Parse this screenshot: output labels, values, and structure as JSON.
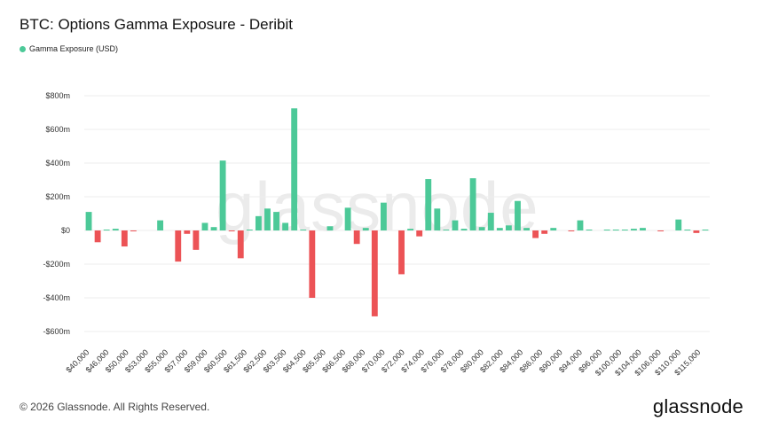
{
  "title": "BTC: Options Gamma Exposure - Deribit",
  "legend": {
    "label": "Gamma Exposure (USD)",
    "color": "#4cc998"
  },
  "watermark": "glassnode",
  "footer": {
    "copyright": "© 2026 Glassnode. All Rights Reserved.",
    "brand": "glassnode"
  },
  "colors": {
    "positive": "#4cc998",
    "negative": "#ec5356",
    "grid": "#eeeeee"
  },
  "chart_data": {
    "type": "bar",
    "ylim": [
      -700,
      850
    ],
    "yticks": [
      -600,
      -400,
      -200,
      0,
      200,
      400,
      600,
      800
    ],
    "ytick_labels": [
      "-$600m",
      "-$400m",
      "-$200m",
      "$0",
      "$200m",
      "$400m",
      "$600m",
      "$800m"
    ],
    "xtick_labels": [
      "$40,000",
      "$46,000",
      "$50,000",
      "$53,000",
      "$55,000",
      "$57,000",
      "$59,000",
      "$60,500",
      "$61,500",
      "$62,500",
      "$63,500",
      "$64,500",
      "$65,500",
      "$66,500",
      "$68,000",
      "$70,000",
      "$72,000",
      "$74,000",
      "$76,000",
      "$78,000",
      "$80,000",
      "$82,000",
      "$84,000",
      "$86,000",
      "$90,000",
      "$94,000",
      "$96,000",
      "$100,000",
      "$104,000",
      "$106,000",
      "$110,000",
      "$115,000"
    ],
    "series": [
      {
        "name": "Gamma Exposure (USD)",
        "values": [
          110,
          -70,
          5,
          10,
          -95,
          -5,
          0,
          0,
          60,
          0,
          -185,
          -20,
          -115,
          45,
          20,
          415,
          -5,
          -165,
          5,
          85,
          130,
          110,
          45,
          725,
          5,
          -400,
          0,
          25,
          0,
          135,
          -80,
          15,
          -510,
          165,
          0,
          -260,
          10,
          -35,
          305,
          130,
          5,
          60,
          10,
          310,
          20,
          105,
          15,
          30,
          175,
          15,
          -45,
          -20,
          15,
          0,
          -5,
          60,
          5,
          0,
          5,
          5,
          5,
          10,
          15,
          0,
          -5,
          0,
          65,
          5,
          -15,
          5
        ]
      }
    ]
  }
}
